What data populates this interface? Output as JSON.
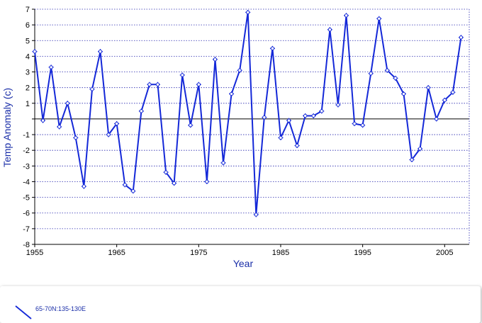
{
  "chart_data": {
    "type": "line",
    "title": "",
    "xlabel": "Year",
    "ylabel": "Temp Anomaly (c)",
    "xlim": [
      1955,
      2008
    ],
    "ylim": [
      -8,
      7
    ],
    "xticks": [
      1955,
      1965,
      1975,
      1985,
      1995,
      2005
    ],
    "yticks": [
      -8,
      -7,
      -6,
      -5,
      -4,
      -3,
      -2,
      -1,
      1,
      2,
      3,
      4,
      5,
      6,
      7
    ],
    "yzero": 0,
    "grid": "horizontal-dotted",
    "legend_position": "bottom",
    "series": [
      {
        "name": "65-70N:135-130E",
        "color": "#1428d8",
        "x": [
          1955,
          1956,
          1957,
          1958,
          1959,
          1960,
          1961,
          1962,
          1963,
          1964,
          1965,
          1966,
          1967,
          1968,
          1969,
          1970,
          1971,
          1972,
          1973,
          1974,
          1975,
          1976,
          1977,
          1978,
          1979,
          1980,
          1981,
          1982,
          1983,
          1984,
          1985,
          1986,
          1987,
          1988,
          1989,
          1990,
          1991,
          1992,
          1993,
          1994,
          1995,
          1996,
          1997,
          1998,
          1999,
          2000,
          2001,
          2002,
          2003,
          2004,
          2005,
          2006,
          2007
        ],
        "y": [
          4.3,
          -0.1,
          3.3,
          -0.5,
          1.0,
          -1.2,
          -4.3,
          1.9,
          4.3,
          -1.0,
          -0.3,
          -4.2,
          -4.6,
          0.5,
          2.2,
          2.2,
          -3.4,
          -4.1,
          2.8,
          -0.4,
          2.2,
          -4.0,
          3.8,
          -2.8,
          1.6,
          3.1,
          6.8,
          -6.1,
          0.1,
          4.5,
          -1.2,
          -0.1,
          -1.7,
          0.2,
          0.2,
          0.5,
          5.7,
          0.9,
          6.6,
          -0.3,
          -0.4,
          2.9,
          6.4,
          3.1,
          2.6,
          1.6,
          -2.6,
          -1.9,
          2.0,
          0.0,
          1.2,
          1.7,
          5.2
        ]
      }
    ]
  },
  "legend": {
    "label": "65-70N:135-130E"
  }
}
